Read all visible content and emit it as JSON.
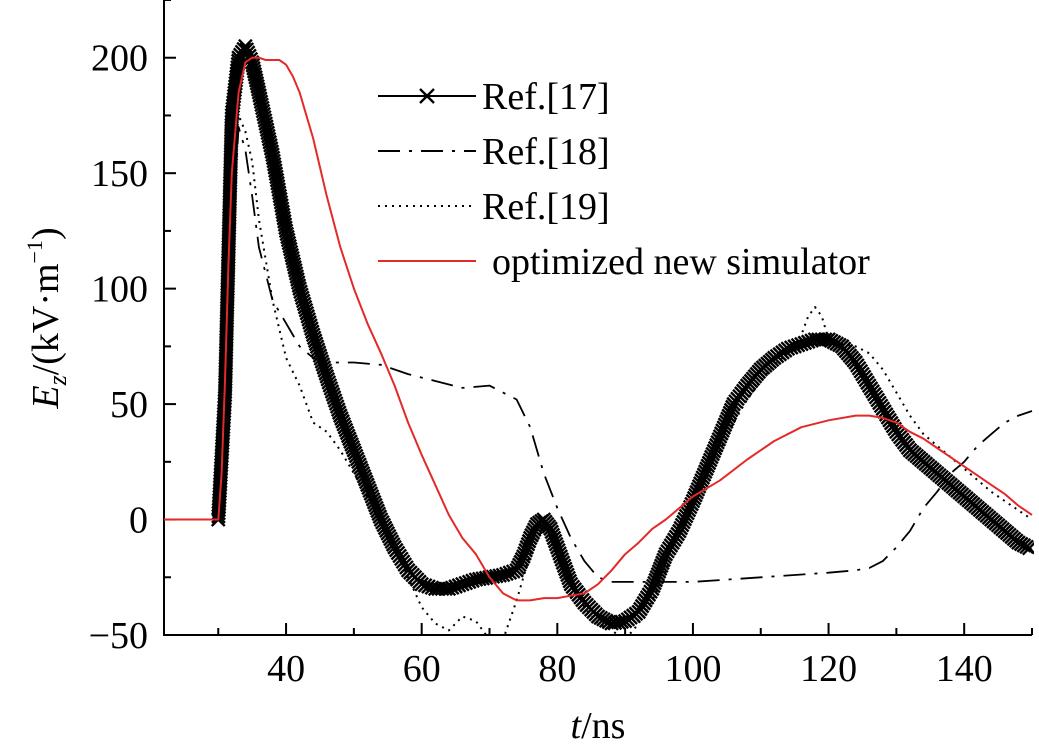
{
  "chart_data": {
    "type": "line",
    "xlabel": "t/ns",
    "xlabel_var": "t",
    "xlabel_unit": "/ns",
    "ylabel": "E_z/(kV·m^-1)",
    "ylabel_var": "E",
    "ylabel_sub": "z",
    "ylabel_unit": "/(kV·m",
    "ylabel_sup": "−1",
    "ylabel_close": ")",
    "xlim": [
      22,
      150
    ],
    "ylim": [
      -50,
      225
    ],
    "xticks": [
      40,
      60,
      80,
      100,
      120,
      140
    ],
    "xtick_labels": [
      "40",
      "60",
      "80",
      "100",
      "120",
      "140"
    ],
    "yticks": [
      -50,
      0,
      50,
      100,
      150,
      200
    ],
    "ytick_labels": [
      "−50",
      "0",
      "50",
      "100",
      "150",
      "200"
    ],
    "grid": false,
    "legend_position": "top-center",
    "series": [
      {
        "name": "Ref.[17]",
        "style": "solid-x",
        "color": "#000000",
        "x": [
          22,
          30,
          31,
          32,
          33,
          34,
          35,
          36,
          38,
          40,
          42,
          44,
          46,
          48,
          50,
          52,
          54,
          56,
          58,
          60,
          62,
          64,
          66,
          68,
          70,
          72,
          74,
          75,
          76,
          77,
          78,
          79,
          80,
          81,
          82,
          84,
          86,
          88,
          90,
          92,
          94,
          96,
          98,
          100,
          102,
          104,
          106,
          108,
          110,
          112,
          114,
          116,
          118,
          120,
          122,
          124,
          126,
          128,
          130,
          132,
          134,
          136,
          138,
          140,
          142,
          144,
          146,
          148,
          150
        ],
        "y": [
          0,
          0,
          54,
          175,
          200,
          205,
          198,
          185,
          158,
          125,
          100,
          80,
          62,
          45,
          30,
          15,
          0,
          -12,
          -22,
          -28,
          -30,
          -30,
          -28,
          -26,
          -25,
          -24,
          -22,
          -16,
          -8,
          -2,
          0,
          -4,
          -12,
          -20,
          -28,
          -36,
          -42,
          -45,
          -44,
          -40,
          -30,
          -15,
          -5,
          8,
          22,
          36,
          50,
          58,
          65,
          70,
          74,
          76,
          78,
          78,
          75,
          68,
          58,
          48,
          38,
          30,
          25,
          20,
          15,
          10,
          5,
          0,
          -5,
          -10,
          -13
        ]
      },
      {
        "name": "Ref.[18]",
        "style": "dash-dot",
        "color": "#000000",
        "x": [
          22,
          30,
          31,
          32,
          33,
          34,
          35,
          36,
          38,
          40,
          42,
          44,
          46,
          48,
          50,
          54,
          58,
          62,
          66,
          70,
          74,
          76,
          78,
          80,
          82,
          84,
          86,
          88,
          90,
          95,
          100,
          105,
          110,
          115,
          120,
          124,
          126,
          128,
          130,
          132,
          134,
          136,
          138,
          140,
          142,
          144,
          146,
          148,
          150
        ],
        "y": [
          0,
          0,
          40,
          120,
          170,
          160,
          140,
          118,
          95,
          85,
          75,
          70,
          68,
          68,
          68,
          67,
          63,
          60,
          57,
          58,
          52,
          40,
          20,
          5,
          -8,
          -18,
          -25,
          -27,
          -27,
          -27,
          -27,
          -26,
          -25,
          -24,
          -23,
          -22,
          -21,
          -18,
          -12,
          -5,
          5,
          12,
          20,
          25,
          32,
          37,
          42,
          45,
          47
        ]
      },
      {
        "name": "Ref.[19]",
        "style": "dotted",
        "color": "#000000",
        "x": [
          22,
          30,
          31,
          32,
          33,
          34,
          35,
          36,
          38,
          40,
          42,
          44,
          46,
          48,
          50,
          52,
          54,
          56,
          58,
          60,
          62,
          64,
          66,
          68,
          70,
          72,
          74,
          76,
          78,
          80,
          82,
          84,
          86,
          88,
          90,
          92,
          94,
          96,
          98,
          100,
          102,
          104,
          106,
          108,
          110,
          112,
          114,
          116,
          117,
          118,
          119,
          120,
          122,
          124,
          126,
          128,
          130,
          132,
          134,
          136,
          138,
          140,
          142,
          144,
          146,
          148,
          150
        ],
        "y": [
          0,
          0,
          60,
          150,
          175,
          168,
          155,
          130,
          95,
          70,
          58,
          42,
          38,
          30,
          20,
          10,
          0,
          -12,
          -25,
          -38,
          -45,
          -48,
          -42,
          -44,
          -52,
          -52,
          -35,
          -15,
          -3,
          -10,
          -25,
          -38,
          -45,
          -48,
          -52,
          -45,
          -35,
          -22,
          -8,
          5,
          18,
          30,
          42,
          52,
          60,
          67,
          72,
          80,
          88,
          92,
          88,
          78,
          76,
          75,
          72,
          65,
          55,
          45,
          37,
          32,
          27,
          22,
          17,
          12,
          8,
          4,
          0
        ]
      },
      {
        "name": "optimized new simulator",
        "style": "solid",
        "color": "#e32a2a",
        "x": [
          22,
          30,
          30.5,
          31,
          31.5,
          32,
          33,
          34,
          35,
          36,
          37,
          38,
          39,
          40,
          41,
          42,
          44,
          46,
          48,
          50,
          52,
          54,
          56,
          58,
          60,
          62,
          64,
          66,
          68,
          70,
          72,
          74,
          76,
          78,
          80,
          82,
          84,
          86,
          88,
          90,
          92,
          94,
          96,
          98,
          100,
          104,
          108,
          112,
          116,
          120,
          124,
          126,
          128,
          130,
          132,
          134,
          136,
          138,
          140,
          142,
          144,
          146,
          148,
          150
        ],
        "y": [
          0,
          0,
          20,
          60,
          110,
          150,
          185,
          198,
          200,
          200,
          199,
          199,
          199,
          197,
          192,
          185,
          165,
          140,
          118,
          100,
          85,
          72,
          58,
          42,
          28,
          15,
          2,
          -8,
          -15,
          -25,
          -32,
          -35,
          -35,
          -34,
          -34,
          -33,
          -32,
          -28,
          -22,
          -15,
          -10,
          -4,
          0,
          5,
          10,
          17,
          26,
          34,
          40,
          43,
          45,
          45,
          44,
          42,
          38,
          35,
          31,
          27,
          23,
          19,
          15,
          11,
          6,
          2
        ]
      }
    ]
  }
}
